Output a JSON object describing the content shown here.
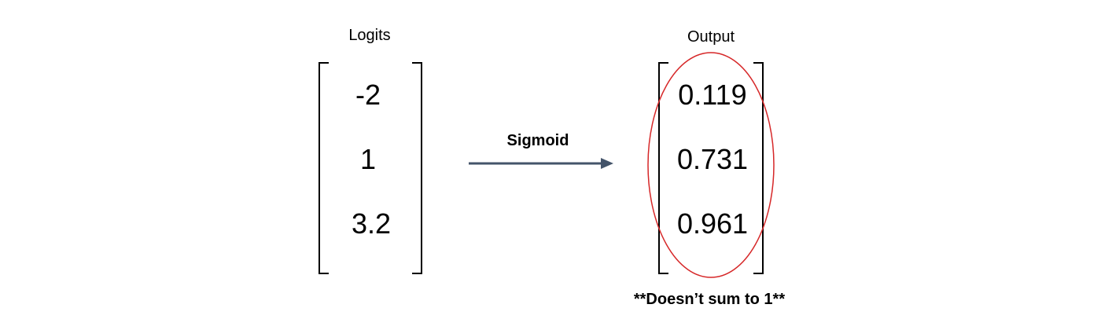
{
  "left": {
    "title": "Logits",
    "values": [
      "-2",
      "1",
      "3.2"
    ]
  },
  "arrow": {
    "label": "Sigmoid"
  },
  "right": {
    "title": "Output",
    "values": [
      "0.119",
      "0.731",
      "0.961"
    ]
  },
  "note": "**Doesn’t sum to 1**",
  "colors": {
    "arrow": "#44546a",
    "highlight": "#d62728",
    "bracket": "#000000"
  }
}
